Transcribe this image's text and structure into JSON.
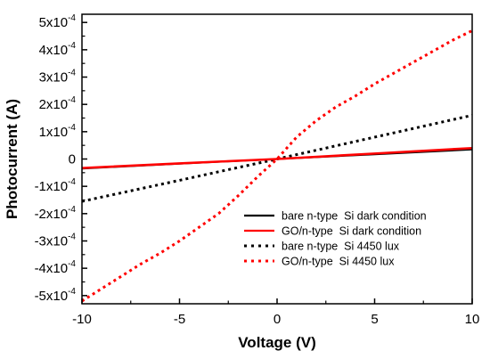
{
  "chart_data": {
    "type": "line",
    "xlabel": "Voltage (V)",
    "ylabel": "Photocurrent (A)",
    "xlim": [
      -10,
      10
    ],
    "ylim": [
      -0.00053,
      0.00053
    ],
    "x_ticks": [
      {
        "value": -10,
        "label": "-10"
      },
      {
        "value": -5,
        "label": "-5"
      },
      {
        "value": 0,
        "label": "0"
      },
      {
        "value": 5,
        "label": "5"
      },
      {
        "value": 10,
        "label": "10"
      }
    ],
    "y_ticks": [
      {
        "value": 0.0005,
        "mantissa": "5x10",
        "exp": "-4"
      },
      {
        "value": 0.0004,
        "mantissa": "4x10",
        "exp": "-4"
      },
      {
        "value": 0.0003,
        "mantissa": "3x10",
        "exp": "-4"
      },
      {
        "value": 0.0002,
        "mantissa": "2x10",
        "exp": "-4"
      },
      {
        "value": 0.0001,
        "mantissa": "1x10",
        "exp": "-4"
      },
      {
        "value": 0,
        "mantissa": "0",
        "exp": ""
      },
      {
        "value": -0.0001,
        "mantissa": "-1x10",
        "exp": "-4"
      },
      {
        "value": -0.0002,
        "mantissa": "-2x10",
        "exp": "-4"
      },
      {
        "value": -0.0003,
        "mantissa": "-3x10",
        "exp": "-4"
      },
      {
        "value": -0.0004,
        "mantissa": "-4x10",
        "exp": "-4"
      },
      {
        "value": -0.0005,
        "mantissa": "-5x10",
        "exp": "-4"
      }
    ],
    "grid": false,
    "legend_position": "bottom-right",
    "series": [
      {
        "name": "bare n-type  Si dark condition",
        "color": "#000000",
        "style": "solid",
        "x": [
          -10,
          -5,
          0,
          5,
          10
        ],
        "y": [
          -3.5e-05,
          -1.7e-05,
          0,
          1.7e-05,
          3.5e-05
        ]
      },
      {
        "name": "GO/n-type  Si dark condition",
        "color": "#ff0000",
        "style": "solid",
        "x": [
          -10,
          -5,
          0,
          5,
          10
        ],
        "y": [
          -3.3e-05,
          -1.6e-05,
          0,
          2e-05,
          4e-05
        ]
      },
      {
        "name": "bare n-type  Si 4450 lux",
        "color": "#000000",
        "style": "dotted",
        "x": [
          -10,
          -5,
          0,
          5,
          10
        ],
        "y": [
          -0.000155,
          -7.8e-05,
          0,
          8e-05,
          0.00016
        ]
      },
      {
        "name": "GO/n-type  Si 4450 lux",
        "color": "#ff0000",
        "style": "dotted",
        "x": [
          -10,
          -9,
          -8,
          -7,
          -6,
          -5,
          -4,
          -3,
          -2,
          -1,
          0,
          1,
          2,
          3,
          4,
          5,
          6,
          7,
          8,
          9,
          10
        ],
        "y": [
          -0.00052,
          -0.000475,
          -0.00043,
          -0.000385,
          -0.000345,
          -0.0003,
          -0.00025,
          -0.0002,
          -0.000135,
          -6.5e-05,
          0,
          8e-05,
          0.00014,
          0.00019,
          0.00023,
          0.000275,
          0.000315,
          0.000355,
          0.000395,
          0.000435,
          0.00047
        ]
      }
    ]
  }
}
